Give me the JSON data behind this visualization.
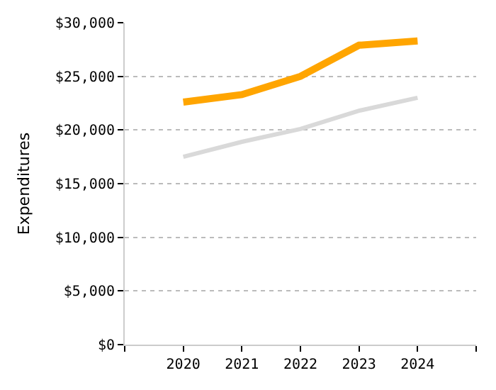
{
  "chart_data": {
    "type": "line",
    "ylabel": "Expenditures",
    "x": [
      2020,
      2021,
      2022,
      2023,
      2024
    ],
    "series": [
      {
        "color": "#ffa500",
        "values": [
          22600,
          23300,
          25000,
          27900,
          28300
        ]
      },
      {
        "color": "#d9d9d9",
        "values": [
          17500,
          18900,
          20100,
          21800,
          23000
        ]
      }
    ],
    "xlim": [
      2019,
      2025
    ],
    "xticks": [
      {
        "value": 2019,
        "label": null
      },
      2020,
      2021,
      2022,
      2023,
      2024,
      {
        "value": 2025,
        "label": null
      }
    ],
    "ylim": [
      0,
      30000
    ],
    "yticks": [
      {
        "value": 0,
        "label": "$0"
      },
      {
        "value": 5000,
        "label": "$5,000"
      },
      {
        "value": 10000,
        "label": "$10,000"
      },
      {
        "value": 15000,
        "label": "$15,000"
      },
      {
        "value": 20000,
        "label": "$20,000"
      },
      {
        "value": 25000,
        "label": "$25,000"
      },
      {
        "value": 30000,
        "label": "$30,000"
      }
    ],
    "grid": "y",
    "marker": "none",
    "line_style": "solid"
  }
}
